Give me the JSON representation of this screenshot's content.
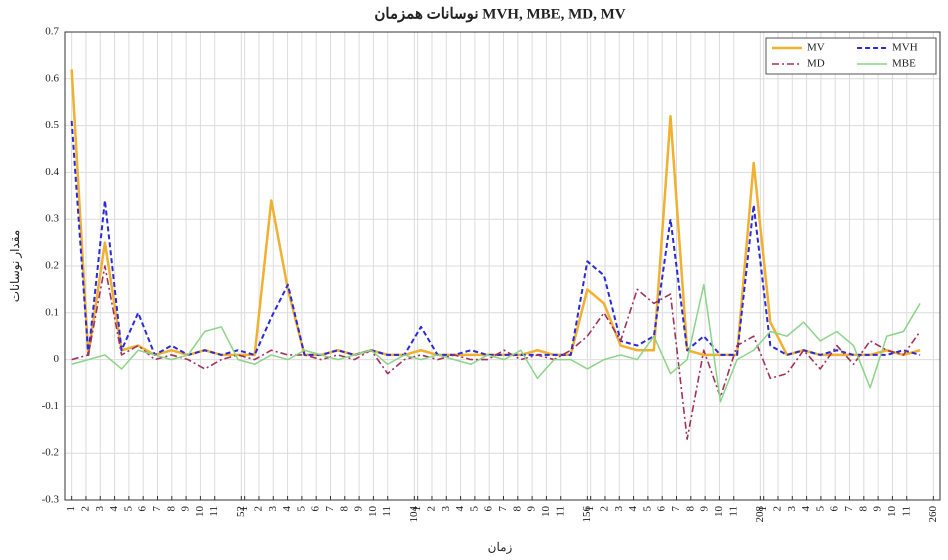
{
  "chart_data": {
    "type": "line",
    "title": "نوسانات همزمان MVH, MBE, MD, MV",
    "x_label": "زمان",
    "y_label": "مقدار نوسانات",
    "x": [
      1,
      6,
      11,
      16,
      21,
      26,
      31,
      36,
      41,
      46,
      51,
      56,
      61,
      66,
      71,
      76,
      81,
      86,
      91,
      96,
      101,
      106,
      111,
      116,
      121,
      126,
      131,
      136,
      141,
      146,
      151,
      156,
      161,
      166,
      171,
      176,
      181,
      186,
      191,
      196,
      201,
      206,
      211,
      216,
      221,
      226,
      231,
      236,
      241,
      246,
      251,
      256
    ],
    "series": [
      {
        "name": "MV",
        "color": "#f0b030",
        "line_style": "solid",
        "values": [
          0.62,
          0.01,
          0.25,
          0.02,
          0.03,
          0.01,
          0.02,
          0.01,
          0.02,
          0.01,
          0.01,
          0.01,
          0.34,
          0.15,
          0.01,
          0.01,
          0.02,
          0.01,
          0.02,
          0.01,
          0.01,
          0.02,
          0.01,
          0.01,
          0.01,
          0.01,
          0.01,
          0.01,
          0.02,
          0.01,
          0.01,
          0.15,
          0.12,
          0.03,
          0.02,
          0.02,
          0.52,
          0.02,
          0.01,
          0.01,
          0.01,
          0.42,
          0.08,
          0.01,
          0.02,
          0.01,
          0.01,
          0.01,
          0.01,
          0.02,
          0.01,
          0.02
        ]
      },
      {
        "name": "MVH",
        "color": "#2a2ad8",
        "line_style": "dashed",
        "values": [
          0.51,
          0.01,
          0.34,
          0.02,
          0.1,
          0.01,
          0.03,
          0.01,
          0.02,
          0.01,
          0.02,
          0.01,
          0.09,
          0.16,
          0.01,
          0.01,
          0.02,
          0.01,
          0.02,
          0.01,
          0.01,
          0.07,
          0.01,
          0.01,
          0.02,
          0.01,
          0.01,
          0.01,
          0.01,
          0.01,
          0.01,
          0.21,
          0.18,
          0.04,
          0.03,
          0.05,
          0.3,
          0.02,
          0.05,
          0.01,
          0.01,
          0.33,
          0.03,
          0.01,
          0.02,
          0.01,
          0.02,
          0.01,
          0.01,
          0.01,
          0.02,
          0.01
        ]
      },
      {
        "name": "MD",
        "color": "#a3305c",
        "line_style": "dashdot",
        "values": [
          0,
          0.01,
          0.2,
          0.01,
          0.03,
          0,
          0.01,
          0,
          -0.02,
          0,
          0.01,
          0,
          0.02,
          0.01,
          0.01,
          0,
          0.01,
          0,
          0.02,
          -0.03,
          0,
          0.01,
          0,
          0.01,
          0,
          0,
          0.02,
          0,
          0.01,
          0,
          0.02,
          0.05,
          0.1,
          0.04,
          0.15,
          0.12,
          0.14,
          -0.17,
          0.02,
          -0.08,
          0.03,
          0.05,
          -0.04,
          -0.03,
          0.02,
          -0.02,
          0.03,
          -0.01,
          0.04,
          0.02,
          0.01,
          0.06
        ]
      },
      {
        "name": "MBE",
        "color": "#8cd488",
        "line_style": "solid",
        "values": [
          -0.01,
          0,
          0.01,
          -0.02,
          0.02,
          0.01,
          0,
          0.01,
          0.06,
          0.07,
          0,
          -0.01,
          0.01,
          0,
          0.02,
          0.01,
          0,
          0.01,
          0.02,
          -0.01,
          0.01,
          0,
          0.01,
          0,
          -0.01,
          0.01,
          0,
          0.02,
          -0.04,
          0,
          0,
          -0.02,
          0,
          0.01,
          0,
          0.05,
          -0.03,
          0,
          0.16,
          -0.09,
          0,
          0.02,
          0.06,
          0.05,
          0.08,
          0.04,
          0.06,
          0.03,
          -0.06,
          0.05,
          0.06,
          0.12
        ]
      }
    ],
    "xlim": [
      -1,
      262
    ],
    "ylim": [
      -0.3,
      0.7
    ],
    "yticks": [
      -0.3,
      -0.2,
      -0.1,
      0,
      0.1,
      0.2,
      0.3,
      0.4,
      0.5,
      0.6,
      0.7
    ],
    "xticks": [
      {
        "value": 1,
        "label": "1"
      },
      {
        "value": 5.3,
        "label": "2"
      },
      {
        "value": 9.6,
        "label": "3"
      },
      {
        "value": 13.9,
        "label": "4"
      },
      {
        "value": 18.2,
        "label": "5"
      },
      {
        "value": 22.5,
        "label": "6"
      },
      {
        "value": 26.8,
        "label": "7"
      },
      {
        "value": 31.1,
        "label": "8"
      },
      {
        "value": 35.4,
        "label": "9"
      },
      {
        "value": 39.7,
        "label": "10"
      },
      {
        "value": 44,
        "label": "11"
      },
      {
        "value": 52,
        "label": "52"
      },
      {
        "value": 53,
        "label": "1"
      },
      {
        "value": 57.3,
        "label": "2"
      },
      {
        "value": 61.6,
        "label": "3"
      },
      {
        "value": 65.9,
        "label": "4"
      },
      {
        "value": 70.2,
        "label": "5"
      },
      {
        "value": 74.5,
        "label": "6"
      },
      {
        "value": 78.8,
        "label": "7"
      },
      {
        "value": 83.1,
        "label": "8"
      },
      {
        "value": 87.4,
        "label": "9"
      },
      {
        "value": 91.7,
        "label": "10"
      },
      {
        "value": 96,
        "label": "11"
      },
      {
        "value": 104,
        "label": "104"
      },
      {
        "value": 105,
        "label": "1"
      },
      {
        "value": 109.3,
        "label": "2"
      },
      {
        "value": 113.6,
        "label": "3"
      },
      {
        "value": 117.9,
        "label": "4"
      },
      {
        "value": 122.2,
        "label": "5"
      },
      {
        "value": 126.5,
        "label": "6"
      },
      {
        "value": 130.8,
        "label": "7"
      },
      {
        "value": 135.1,
        "label": "8"
      },
      {
        "value": 139.4,
        "label": "9"
      },
      {
        "value": 143.7,
        "label": "10"
      },
      {
        "value": 148,
        "label": "11"
      },
      {
        "value": 156,
        "label": "156"
      },
      {
        "value": 157,
        "label": "1"
      },
      {
        "value": 161.3,
        "label": "2"
      },
      {
        "value": 165.6,
        "label": "3"
      },
      {
        "value": 169.9,
        "label": "4"
      },
      {
        "value": 174.2,
        "label": "5"
      },
      {
        "value": 178.5,
        "label": "6"
      },
      {
        "value": 182.8,
        "label": "7"
      },
      {
        "value": 187.1,
        "label": "8"
      },
      {
        "value": 191.4,
        "label": "9"
      },
      {
        "value": 195.7,
        "label": "10"
      },
      {
        "value": 200,
        "label": "11"
      },
      {
        "value": 208,
        "label": "208"
      },
      {
        "value": 209,
        "label": "1"
      },
      {
        "value": 213.3,
        "label": "2"
      },
      {
        "value": 217.6,
        "label": "3"
      },
      {
        "value": 221.9,
        "label": "4"
      },
      {
        "value": 226.2,
        "label": "5"
      },
      {
        "value": 230.5,
        "label": "6"
      },
      {
        "value": 234.8,
        "label": "7"
      },
      {
        "value": 239.1,
        "label": "8"
      },
      {
        "value": 243.4,
        "label": "9"
      },
      {
        "value": 247.7,
        "label": "10"
      },
      {
        "value": 252,
        "label": "11"
      },
      {
        "value": 260,
        "label": "260"
      }
    ],
    "grid": true,
    "legend": "upper right"
  }
}
